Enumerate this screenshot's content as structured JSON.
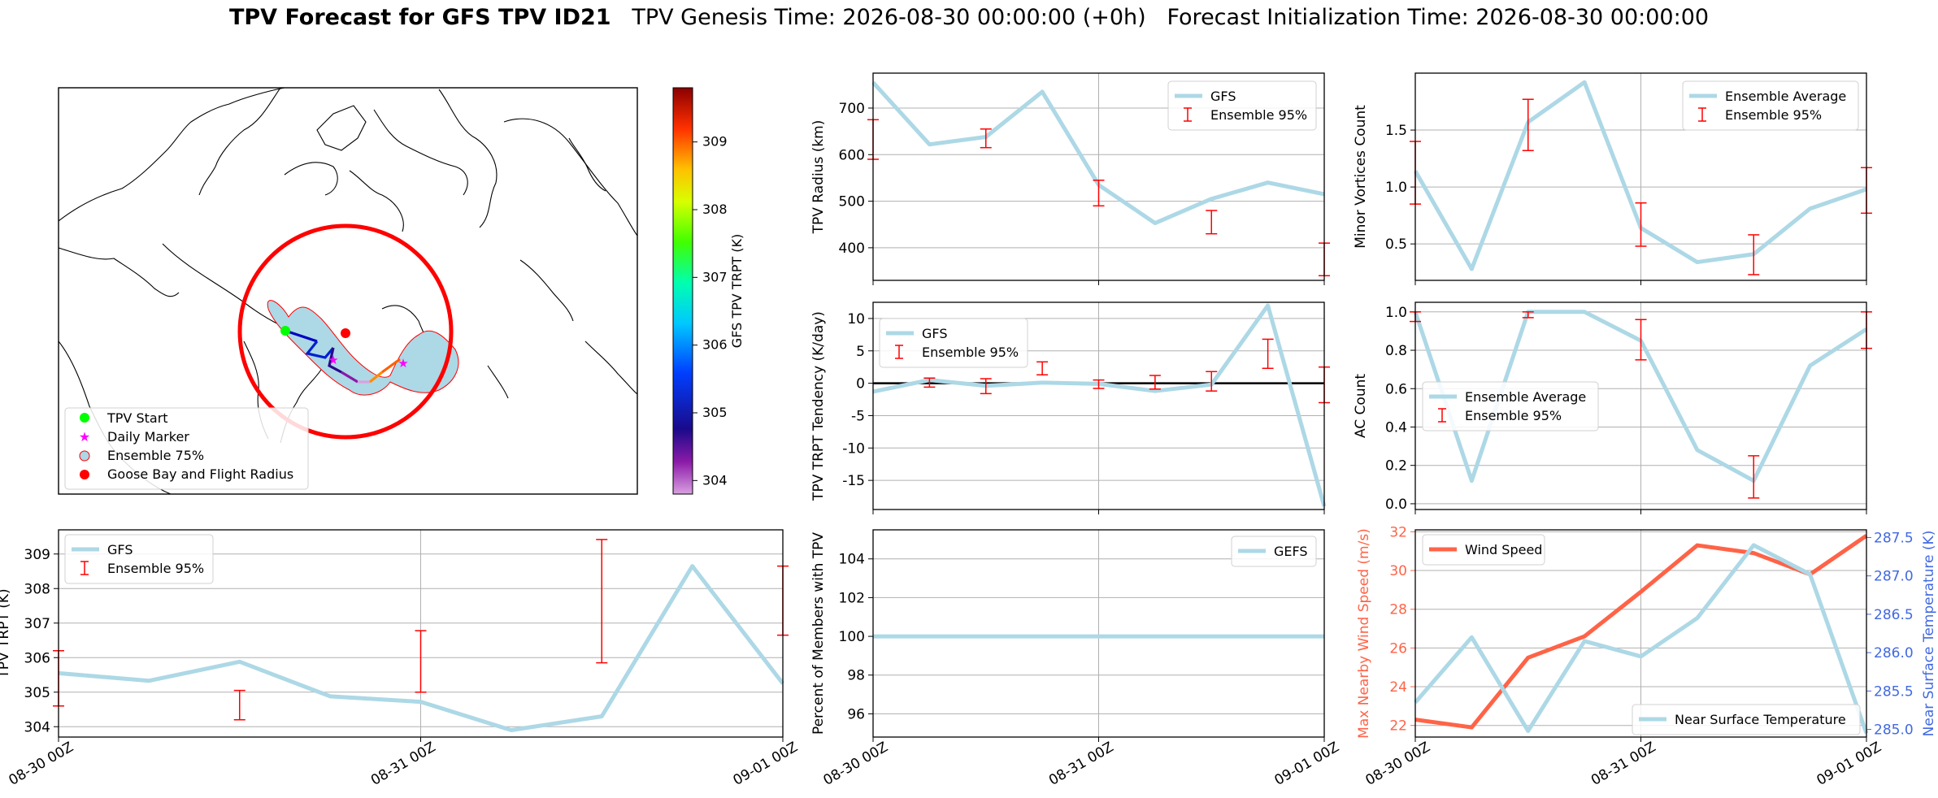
{
  "title": {
    "bold": "TPV Forecast for GFS TPV ID21",
    "genesis": "TPV Genesis Time: 2026-08-30 00:00:00 (+0h)",
    "init": "Forecast Initialization Time: 2026-08-30 00:00:00"
  },
  "colors": {
    "gfs_line": "#add8e6",
    "ensemble_bar": "#ff0000",
    "wind_line": "#ff6347",
    "wind_axis": "#ff6347",
    "temp_axis": "#4169e1",
    "zero_line": "#000000",
    "radius_circle": "#ff0000",
    "track_cmap": "gist_ncar-like (violet→blue→green→yellow→red)"
  },
  "chart_data": [
    {
      "id": "map",
      "type": "map",
      "legend": [
        "TPV Start",
        "Daily Marker",
        "Ensemble 75%",
        "Goose Bay and Flight Radius"
      ],
      "legend_placement": "lower-left",
      "legend_marker_colors": [
        "#00ff00",
        "#ff00ff",
        "#add8e6",
        "#ff0000"
      ],
      "colorbar": {
        "label": "GFS TPV TRPT (K)",
        "ticks": [
          304,
          305,
          306,
          307,
          308,
          309
        ],
        "range": [
          303.8,
          309.8
        ]
      },
      "notes": "North America polar projection; TPV track over Labrador / Baffin Bay region; Goose Bay flight radius circle."
    },
    {
      "id": "radius",
      "type": "line",
      "ylabel": "TPV Radius (km)",
      "xlim": [
        0,
        8
      ],
      "ylim": [
        330,
        775
      ],
      "yticks": [
        400,
        500,
        600,
        700
      ],
      "grid": true,
      "legend_placement": "top-right",
      "series": [
        {
          "name": "GFS",
          "style": "line",
          "x": [
            0,
            1,
            2,
            3,
            4,
            5,
            6,
            7,
            8
          ],
          "values": [
            755,
            622,
            638,
            735,
            535,
            453,
            505,
            540,
            515
          ]
        },
        {
          "name": "Ensemble 95%",
          "style": "errorbar",
          "x": [
            0,
            2,
            4,
            6,
            8
          ],
          "low": [
            590,
            615,
            490,
            430,
            340
          ],
          "high": [
            675,
            655,
            545,
            480,
            410
          ]
        }
      ]
    },
    {
      "id": "minor_vortices",
      "type": "line",
      "ylabel": "Minor Vortices Count",
      "xlim": [
        0,
        8
      ],
      "ylim": [
        0.18,
        2.0
      ],
      "yticks": [
        0.5,
        1.0,
        1.5
      ],
      "grid": true,
      "legend_placement": "top-right",
      "series": [
        {
          "name": "Ensemble Average",
          "style": "line",
          "x": [
            0,
            1,
            2,
            3,
            4,
            5,
            6,
            7,
            8
          ],
          "values": [
            1.14,
            0.28,
            1.57,
            1.92,
            0.64,
            0.34,
            0.41,
            0.81,
            0.98
          ]
        },
        {
          "name": "Ensemble 95%",
          "style": "errorbar",
          "x": [
            0,
            2,
            4,
            6,
            8
          ],
          "low": [
            0.85,
            1.32,
            0.48,
            0.23,
            0.77
          ],
          "high": [
            1.4,
            1.77,
            0.86,
            0.58,
            1.17
          ]
        }
      ]
    },
    {
      "id": "tendency",
      "type": "line",
      "ylabel": "TPV TRPT Tendency (K/day)",
      "xlim": [
        0,
        8
      ],
      "ylim": [
        -19.5,
        12.5
      ],
      "yticks": [
        -15,
        -10,
        -5,
        0,
        5,
        10
      ],
      "grid": true,
      "zero_line": true,
      "legend_placement": "top-left",
      "series": [
        {
          "name": "GFS",
          "style": "line",
          "x": [
            0,
            1,
            2,
            3,
            4,
            5,
            6,
            7,
            8
          ],
          "values": [
            -1.3,
            0.5,
            -0.4,
            0.1,
            -0.1,
            -1.2,
            -0.2,
            12.0,
            -19.0
          ]
        },
        {
          "name": "Ensemble 95%",
          "style": "errorbar",
          "x": [
            1,
            2,
            3,
            4,
            5,
            6,
            7,
            8
          ],
          "low": [
            -0.6,
            -1.6,
            1.3,
            -0.8,
            -0.9,
            -1.2,
            2.3,
            -3.0
          ],
          "high": [
            0.8,
            0.7,
            3.3,
            0.5,
            1.2,
            1.8,
            6.8,
            2.5
          ]
        }
      ]
    },
    {
      "id": "ac_count",
      "type": "line",
      "ylabel": "AC Count",
      "xlim": [
        0,
        8
      ],
      "ylim": [
        -0.03,
        1.05
      ],
      "yticks": [
        0.0,
        0.2,
        0.4,
        0.6,
        0.8,
        1.0
      ],
      "grid": true,
      "legend_placement": "center-left",
      "series": [
        {
          "name": "Ensemble Average",
          "style": "line",
          "x": [
            0,
            1,
            2,
            3,
            4,
            5,
            6,
            7,
            8
          ],
          "values": [
            1.0,
            0.12,
            1.0,
            1.0,
            0.85,
            0.28,
            0.12,
            0.72,
            0.91
          ]
        },
        {
          "name": "Ensemble 95%",
          "style": "errorbar",
          "x": [
            0,
            2,
            4,
            6,
            8
          ],
          "low": [
            0.95,
            0.97,
            0.75,
            0.03,
            0.81
          ],
          "high": [
            1.0,
            1.0,
            0.96,
            0.25,
            1.0
          ]
        }
      ]
    },
    {
      "id": "trpt",
      "type": "line",
      "ylabel": "TPV TRPT (K)",
      "xlim": [
        0,
        8
      ],
      "ylim": [
        303.7,
        309.7
      ],
      "yticks": [
        304,
        305,
        306,
        307,
        308,
        309
      ],
      "xticks": [
        0,
        4,
        8
      ],
      "xticklabels": [
        "08-30 00Z",
        "08-31 00Z",
        "09-01 00Z"
      ],
      "grid": true,
      "legend_placement": "top-left",
      "series": [
        {
          "name": "GFS",
          "style": "line",
          "x": [
            0,
            1,
            2,
            3,
            4,
            5,
            6,
            7,
            8
          ],
          "values": [
            305.55,
            305.33,
            305.88,
            304.88,
            304.72,
            303.9,
            304.3,
            308.65,
            305.25
          ]
        },
        {
          "name": "Ensemble 95%",
          "style": "errorbar",
          "x": [
            0,
            2,
            4,
            6,
            8
          ],
          "low": [
            304.6,
            304.2,
            305.0,
            305.85,
            306.65
          ],
          "high": [
            306.2,
            305.05,
            306.78,
            309.42,
            308.65
          ]
        }
      ]
    },
    {
      "id": "percent_members",
      "type": "line",
      "ylabel": "Percent of Members with TPV",
      "xlim": [
        0,
        8
      ],
      "ylim": [
        94.8,
        105.5
      ],
      "yticks": [
        96,
        98,
        100,
        102,
        104
      ],
      "xticks": [
        0,
        4,
        8
      ],
      "xticklabels": [
        "08-30 00Z",
        "08-31 00Z",
        "09-01 00Z"
      ],
      "grid": true,
      "legend_placement": "top-right",
      "series": [
        {
          "name": "GEFS",
          "style": "line",
          "x": [
            0,
            1,
            2,
            3,
            4,
            5,
            6,
            7,
            8
          ],
          "values": [
            100,
            100,
            100,
            100,
            100,
            100,
            100,
            100,
            100
          ]
        }
      ]
    },
    {
      "id": "wind_temp",
      "type": "line",
      "ylabel": "Max Nearby Wind Speed (m/s)",
      "ylabel_right": "Near Surface Temperature (K)",
      "xlim": [
        0,
        8
      ],
      "ylim": [
        21.4,
        32.1
      ],
      "yticks": [
        22,
        24,
        26,
        28,
        30,
        32
      ],
      "ylim_right": [
        284.9,
        287.6
      ],
      "yticks_right": [
        285.0,
        285.5,
        286.0,
        286.5,
        287.0,
        287.5
      ],
      "xticks": [
        0,
        4,
        8
      ],
      "xticklabels": [
        "08-30 00Z",
        "08-31 00Z",
        "09-01 00Z"
      ],
      "grid": true,
      "legend_placement": [
        "top-left",
        "bottom-right"
      ],
      "series": [
        {
          "name": "Wind Speed",
          "axis": "left",
          "style": "line",
          "x": [
            0,
            1,
            2,
            3,
            4,
            5,
            6,
            7,
            8
          ],
          "values": [
            22.3,
            21.9,
            25.5,
            26.6,
            28.9,
            31.3,
            30.9,
            29.8,
            31.8
          ]
        },
        {
          "name": "Near Surface Temperature",
          "axis": "right",
          "style": "line",
          "x": [
            0,
            1,
            2,
            3,
            4,
            5,
            6,
            7,
            8
          ],
          "values": [
            285.35,
            286.2,
            284.98,
            286.15,
            285.95,
            286.45,
            287.4,
            287.02,
            284.95
          ]
        }
      ]
    }
  ]
}
